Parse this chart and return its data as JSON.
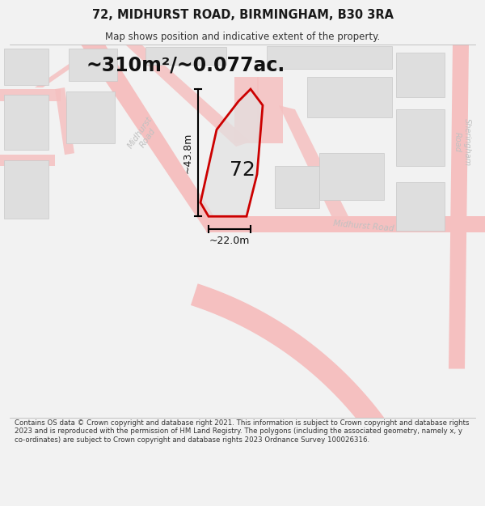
{
  "title": "72, MIDHURST ROAD, BIRMINGHAM, B30 3RA",
  "subtitle": "Map shows position and indicative extent of the property.",
  "area_label": "~310m²/~0.077ac.",
  "number_label": "72",
  "width_label": "~22.0m",
  "height_label": "~43.8m",
  "footer": "Contains OS data © Crown copyright and database right 2021. This information is subject to Crown copyright and database rights 2023 and is reproduced with the permission of HM Land Registry. The polygons (including the associated geometry, namely x, y co-ordinates) are subject to Crown copyright and database rights 2023 Ordnance Survey 100026316.",
  "bg_color": "#f2f2f2",
  "map_bg": "#efefef",
  "road_color": "#f5c0c0",
  "building_fill": "#dedede",
  "building_stroke": "#c8c8c8",
  "property_color": "#cc0000",
  "property_fill": "#e0e0e0",
  "road_text_color": "#c8c8c8"
}
